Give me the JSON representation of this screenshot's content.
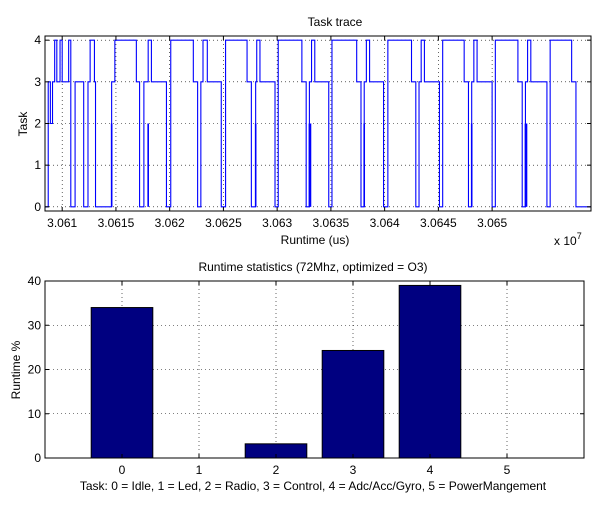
{
  "figure": {
    "background": "#ffffff"
  },
  "chart_data": [
    {
      "type": "line",
      "title": "Task trace",
      "xlabel": "Runtime (us)",
      "ylabel": "Task",
      "x_exponent_label": "x 10",
      "x_exponent_power": "7",
      "xlim": [
        3.06084,
        3.06592
      ],
      "ylim": [
        -0.1,
        4.1
      ],
      "x_ticks": [
        3.061,
        3.0615,
        3.062,
        3.0625,
        3.063,
        3.0635,
        3.064,
        3.0645,
        3.065
      ],
      "x_tick_labels": [
        "3.061",
        "3.0615",
        "3.062",
        "3.0625",
        "3.063",
        "3.0635",
        "3.064",
        "3.0645",
        "3.065"
      ],
      "y_ticks": [
        0,
        1,
        2,
        3,
        4
      ],
      "y_tick_labels": [
        "0",
        "1",
        "2",
        "3",
        "4"
      ],
      "grid": true,
      "color": "#0000ff",
      "series": [
        {
          "name": "",
          "x": [
            3.06084,
            3.06087,
            3.06087,
            3.06089,
            3.06089,
            3.06091,
            3.06091,
            3.06093,
            3.06093,
            3.06095,
            3.06095,
            3.06098,
            3.06098,
            3.061,
            3.061,
            3.06106,
            3.06106,
            3.06108,
            3.06108,
            3.06112,
            3.06112,
            3.0612,
            3.0612,
            3.06124,
            3.06124,
            3.06126,
            3.06126,
            3.0613,
            3.0613,
            3.06131,
            3.06131,
            3.06146,
            3.06146,
            3.06149,
            3.06149,
            3.06169,
            3.06169,
            3.06172,
            3.06172,
            3.06176,
            3.06176,
            3.0618,
            3.0618,
            3.06183,
            3.06183,
            3.06197,
            3.06197,
            3.06201,
            3.06201,
            3.06222,
            3.06222,
            3.06226,
            3.06226,
            3.06229,
            3.06229,
            3.06231,
            3.06231,
            3.06235,
            3.06235,
            3.06248,
            3.06248,
            3.06252,
            3.06252,
            3.06272,
            3.06272,
            3.06276,
            3.06276,
            3.0628,
            3.0628,
            3.06281,
            3.06281,
            3.06284,
            3.06284,
            3.06298,
            3.06298,
            3.06301,
            3.06301,
            3.06323,
            3.06323,
            3.06327,
            3.06327,
            3.0633,
            3.0633,
            3.06332,
            3.06332,
            3.06335,
            3.06335,
            3.06348,
            3.06348,
            3.06351,
            3.06351,
            3.06374,
            3.06374,
            3.06378,
            3.06378,
            3.06381,
            3.06381,
            3.06383,
            3.06383,
            3.06386,
            3.06386,
            3.06399,
            3.06399,
            3.06403,
            3.06403,
            3.06425,
            3.06425,
            3.06429,
            3.06429,
            3.06432,
            3.06432,
            3.06434,
            3.06434,
            3.06437,
            3.06437,
            3.06451,
            3.06451,
            3.06454,
            3.06454,
            3.06474,
            3.06474,
            3.06478,
            3.06478,
            3.06481,
            3.06481,
            3.06483,
            3.06483,
            3.06486,
            3.06486,
            3.065,
            3.065,
            3.06503,
            3.06503,
            3.06524,
            3.06524,
            3.06528,
            3.06528,
            3.06531,
            3.06531,
            3.06533,
            3.06533,
            3.06536,
            3.06536,
            3.06551,
            3.06551,
            3.06554,
            3.06554,
            3.06574,
            3.06574,
            3.06578,
            3.06578,
            3.06592
          ],
          "y": [
            0,
            0,
            3,
            3,
            2,
            2,
            3,
            3,
            4,
            4,
            3,
            3,
            4,
            4,
            3,
            3,
            4,
            4,
            0,
            0,
            3,
            3,
            0,
            0,
            3,
            3,
            4,
            4,
            3,
            3,
            0,
            0,
            3,
            3,
            4,
            4,
            3,
            3,
            0,
            0,
            3,
            3,
            4,
            4,
            3,
            3,
            0,
            0,
            4,
            4,
            3,
            3,
            0,
            0,
            3,
            3,
            4,
            4,
            3,
            3,
            0,
            0,
            4,
            4,
            3,
            3,
            0,
            0,
            3,
            3,
            4,
            4,
            3,
            3,
            0,
            0,
            4,
            4,
            3,
            3,
            0,
            0,
            3,
            3,
            4,
            4,
            3,
            3,
            0,
            0,
            4,
            4,
            3,
            3,
            0,
            0,
            3,
            3,
            4,
            4,
            3,
            3,
            0,
            0,
            4,
            4,
            3,
            3,
            0,
            0,
            3,
            3,
            4,
            4,
            3,
            3,
            0,
            0,
            4,
            4,
            3,
            3,
            0,
            0,
            3,
            3,
            4,
            4,
            3,
            3,
            0,
            0,
            4,
            4,
            3,
            3,
            0,
            0,
            3,
            3,
            4,
            4,
            3,
            3,
            0,
            0,
            4,
            4,
            3,
            3,
            0,
            0
          ]
        }
      ],
      "spikes": [
        {
          "x": 3.06146,
          "from": 0,
          "to": 2
        },
        {
          "x": 3.0618,
          "from": 0,
          "to": 2
        },
        {
          "x": 3.0628,
          "from": 0,
          "to": 2
        },
        {
          "x": 3.0633,
          "from": 0,
          "to": 2
        },
        {
          "x": 3.06331,
          "from": 0,
          "to": 2
        },
        {
          "x": 3.06381,
          "from": 0,
          "to": 2
        },
        {
          "x": 3.06481,
          "from": 0,
          "to": 2
        },
        {
          "x": 3.06531,
          "from": 0,
          "to": 2
        },
        {
          "x": 3.06532,
          "from": 0,
          "to": 2
        }
      ]
    },
    {
      "type": "bar",
      "title": "Runtime statistics (72Mhz, optimized = O3)",
      "xlabel": "Task: 0 = Idle, 1 = Led, 2 = Radio, 3 = Control, 4 = Adc/Acc/Gyro, 5 = PowerMangement",
      "ylabel": "Runtime %",
      "categories": [
        "0",
        "1",
        "2",
        "3",
        "4",
        "5"
      ],
      "values": [
        34,
        0,
        3.2,
        24.3,
        39,
        0
      ],
      "xlim": [
        -1,
        6
      ],
      "ylim": [
        0,
        40
      ],
      "y_ticks": [
        0,
        10,
        20,
        30,
        40
      ],
      "y_tick_labels": [
        "0",
        "10",
        "20",
        "30",
        "40"
      ],
      "bar_width": 0.8,
      "grid": true,
      "color": "#000080"
    }
  ]
}
